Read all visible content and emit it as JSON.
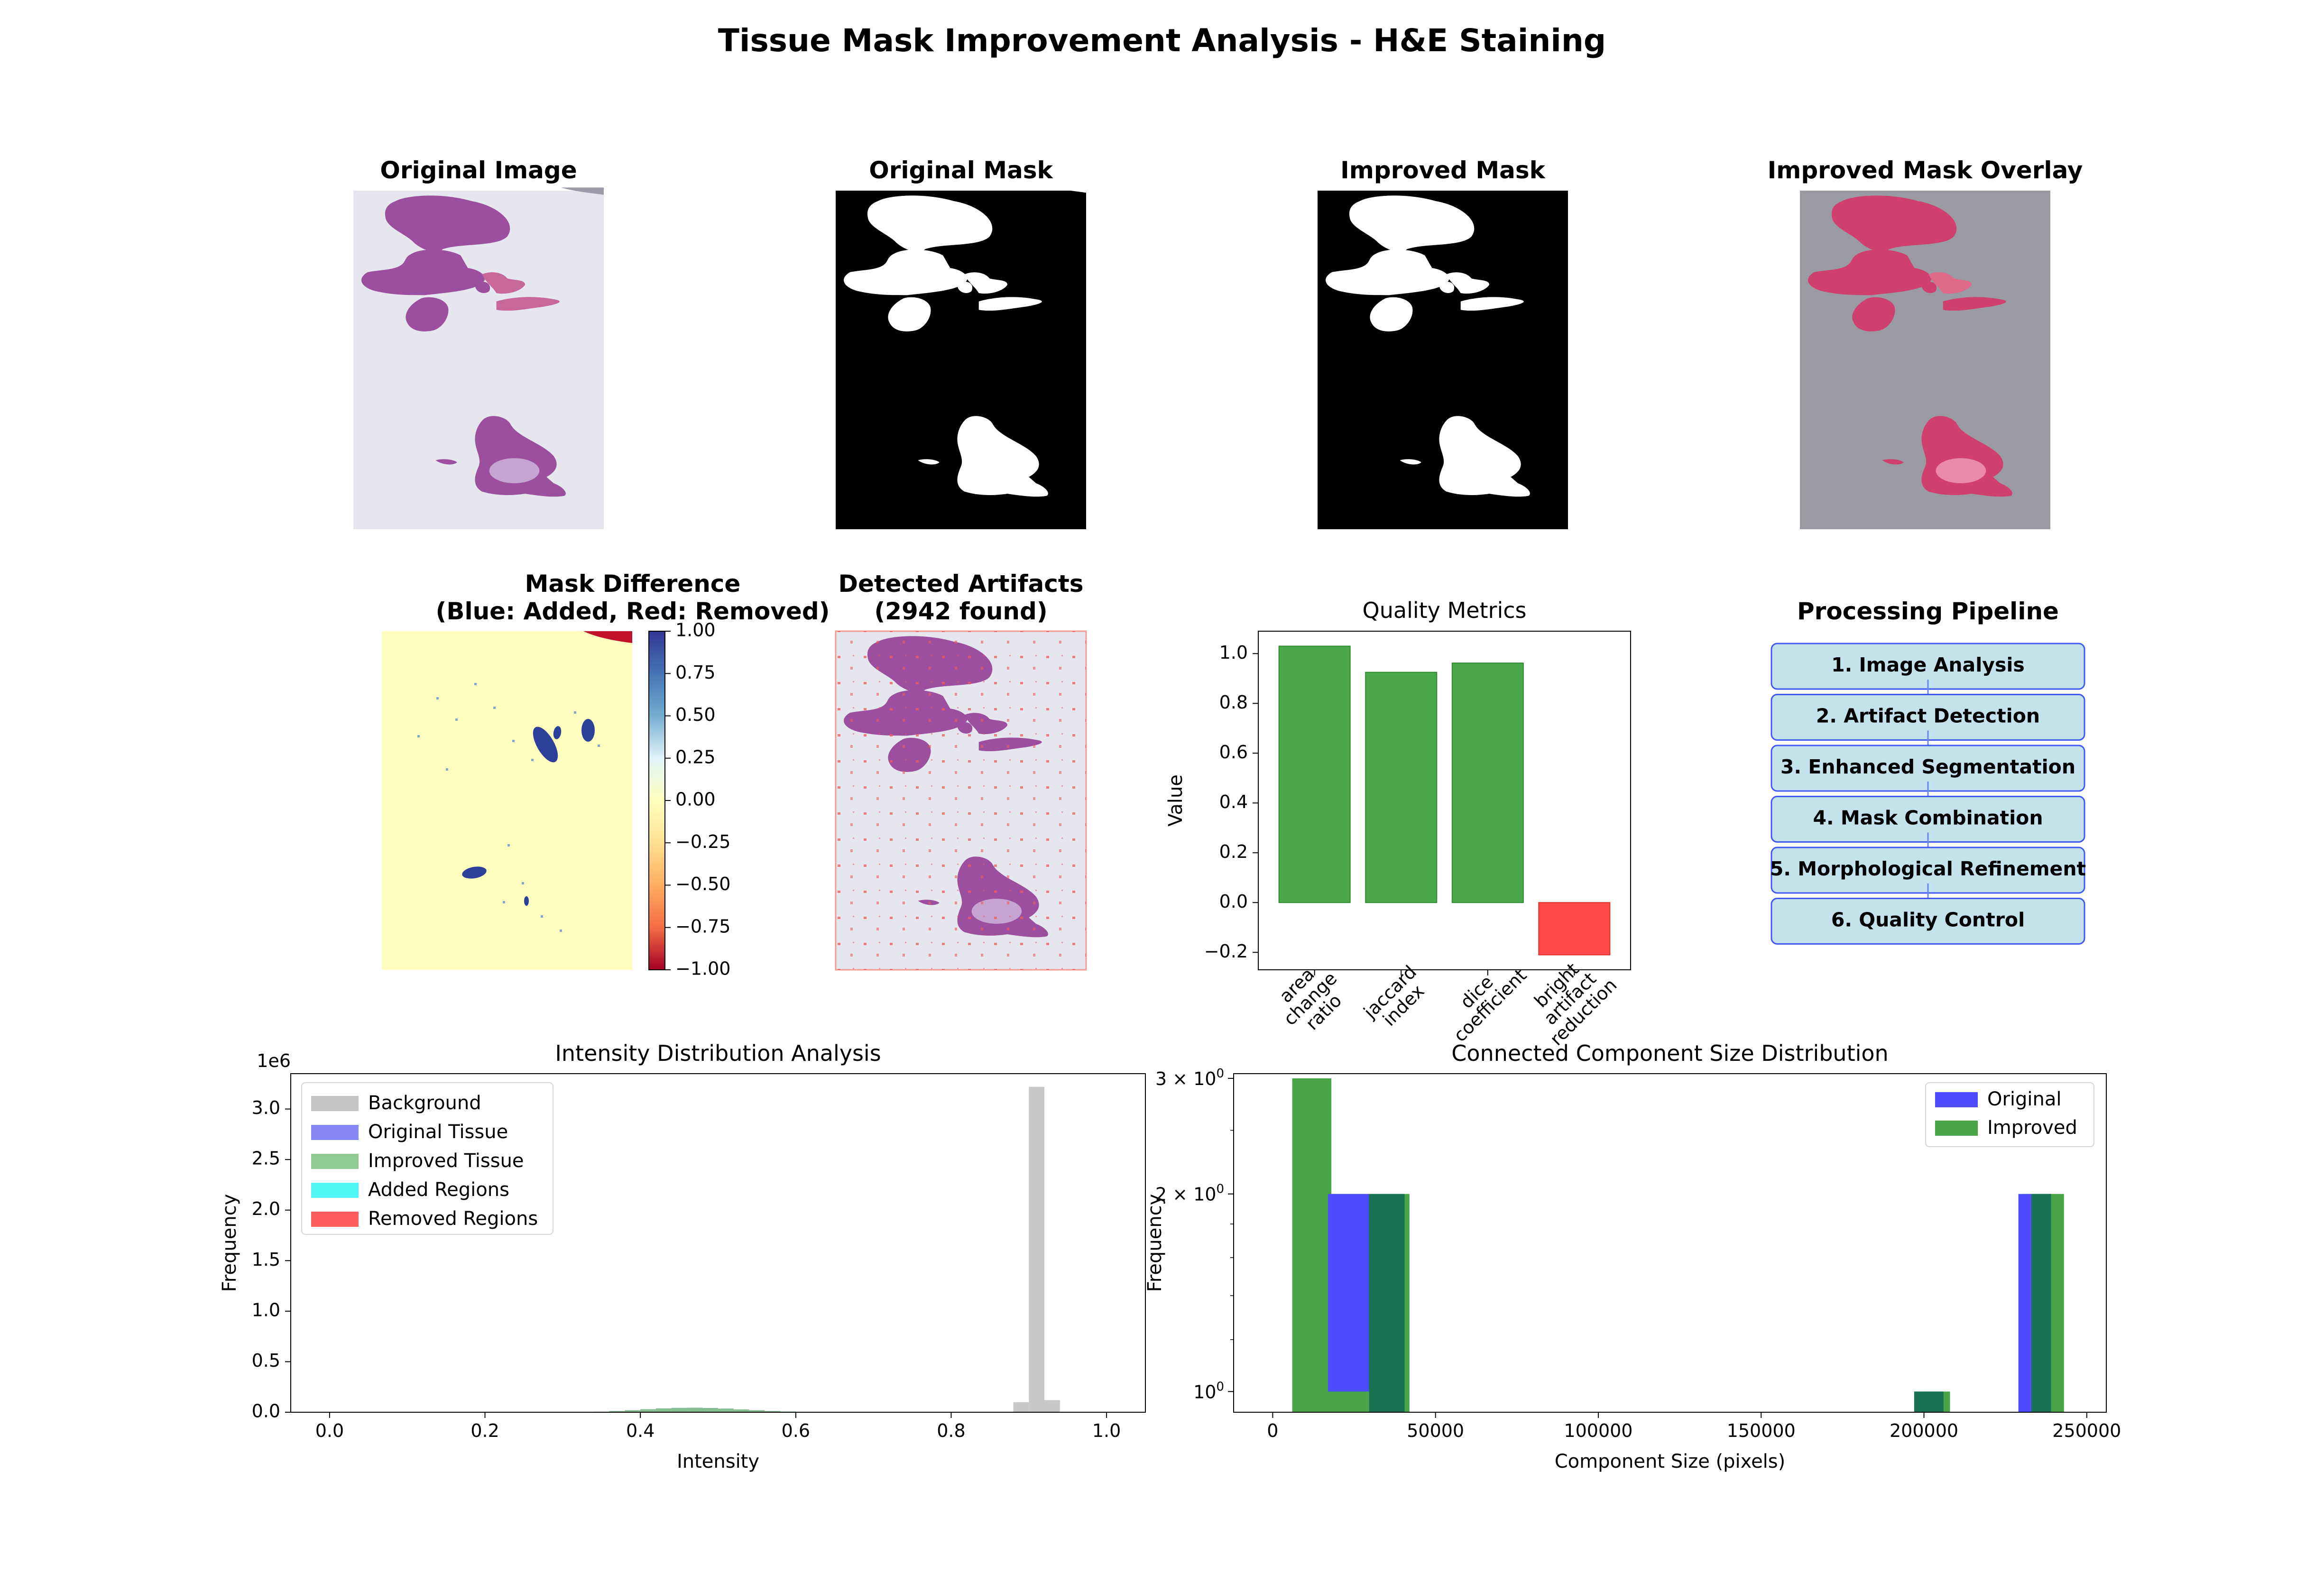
{
  "suptitle": "Tissue Mask Improvement Analysis - H&E Staining",
  "panels": {
    "original_image": {
      "title": "Original Image"
    },
    "original_mask": {
      "title": "Original Mask"
    },
    "improved_mask": {
      "title": "Improved Mask"
    },
    "overlay": {
      "title": "Improved Mask Overlay"
    },
    "difference": {
      "title_line1": "Mask Difference",
      "title_line2": "(Blue: Added, Red: Removed)",
      "colorbar_ticks": [
        "1.00",
        "0.75",
        "0.50",
        "0.25",
        "0.00",
        "−0.25",
        "−0.50",
        "−0.75",
        "−1.00"
      ],
      "colorbar_values": [
        1.0,
        0.75,
        0.5,
        0.25,
        0.0,
        -0.25,
        -0.5,
        -0.75,
        -1.0
      ]
    },
    "artifacts": {
      "title_line1": "Detected Artifacts",
      "title_line2": "(2942 found)"
    },
    "pipeline": {
      "title": "Processing Pipeline",
      "steps": [
        "1. Image Analysis",
        "2. Artifact Detection",
        "3. Enhanced Segmentation",
        "4. Mask Combination",
        "5. Morphological Refinement",
        "6. Quality Control"
      ]
    }
  },
  "colors": {
    "tissue_purple": "#9b4f9e",
    "tissue_pink": "#c8689a",
    "slide_bg": "#e6e6ee",
    "mask_black": "#000000",
    "mask_white": "#ffffff",
    "overlay_gray": "#9a9aa2",
    "overlay_tissue": "#d0406e",
    "diff_bg": "#fffebf",
    "diff_blue": "#2c3f99",
    "diff_red": "#c0102a",
    "bar_green": "#4aa84a",
    "bar_red": "#ff4848",
    "hist_gray": "#bfbfbf",
    "hist_blue": "#7a7af5",
    "hist_green": "#84c484",
    "hist_cyan": "#3ff5f5",
    "hist_red": "#ff4a4a",
    "cc_blue": "#4d4dff",
    "cc_green": "#47a447",
    "cc_overlap": "#177352",
    "pipeline_fill": "#c4e2ec",
    "pipeline_edge": "#4058f0"
  },
  "chart_data": [
    {
      "type": "bar",
      "title": "Quality Metrics",
      "xlabel": "",
      "ylabel": "Value",
      "categories": [
        "area\nchange\nratio",
        "jaccard\nindex",
        "dice\ncoefficient",
        "bright\nartifact\nreduction"
      ],
      "values": [
        1.03,
        0.925,
        0.962,
        -0.21
      ],
      "ylim": [
        -0.27,
        1.09
      ],
      "yticks": [
        -0.2,
        0.0,
        0.2,
        0.4,
        0.6,
        0.8,
        1.0
      ],
      "ytick_labels": [
        "−0.2",
        "0.0",
        "0.2",
        "0.4",
        "0.6",
        "0.8",
        "1.0"
      ],
      "grid": false
    },
    {
      "type": "bar",
      "title": "Intensity Distribution Analysis",
      "xlabel": "Intensity",
      "ylabel": "Frequency",
      "offset_label": "1e6",
      "xlim": [
        -0.05,
        1.05
      ],
      "ylim": [
        0,
        3.35
      ],
      "xticks": [
        0.0,
        0.2,
        0.4,
        0.6,
        0.8,
        1.0
      ],
      "xtick_labels": [
        "0.0",
        "0.2",
        "0.4",
        "0.6",
        "0.8",
        "1.0"
      ],
      "yticks": [
        0.0,
        0.5,
        1.0,
        1.5,
        2.0,
        2.5,
        3.0
      ],
      "ytick_labels": [
        "0.0",
        "0.5",
        "1.0",
        "1.5",
        "2.0",
        "2.5",
        "3.0"
      ],
      "legend_position": "upper-left",
      "series": [
        {
          "name": "Background",
          "color": "#bfbfbf",
          "bin_width": 0.02,
          "x": [
            0.88,
            0.9,
            0.92
          ],
          "values": [
            0.1,
            3.22,
            0.12
          ]
        },
        {
          "name": "Original Tissue",
          "color": "#7a7af5",
          "bin_width": 0.02,
          "x": [
            0.34,
            0.36,
            0.38,
            0.4,
            0.42,
            0.44,
            0.46,
            0.48,
            0.5,
            0.52,
            0.54,
            0.56,
            0.58,
            0.6
          ],
          "values": [
            0.005,
            0.012,
            0.02,
            0.03,
            0.038,
            0.043,
            0.045,
            0.042,
            0.036,
            0.028,
            0.02,
            0.012,
            0.007,
            0.003
          ]
        },
        {
          "name": "Improved Tissue",
          "color": "#84c484",
          "bin_width": 0.02,
          "x": [
            0.34,
            0.36,
            0.38,
            0.4,
            0.42,
            0.44,
            0.46,
            0.48,
            0.5,
            0.52,
            0.54,
            0.56,
            0.58,
            0.6
          ],
          "values": [
            0.005,
            0.012,
            0.02,
            0.03,
            0.038,
            0.043,
            0.045,
            0.042,
            0.036,
            0.028,
            0.02,
            0.012,
            0.007,
            0.003
          ]
        },
        {
          "name": "Added Regions",
          "color": "#3ff5f5",
          "bin_width": 0.02,
          "x": [
            0.88,
            0.9
          ],
          "values": [
            0.002,
            0.004
          ]
        },
        {
          "name": "Removed Regions",
          "color": "#ff4a4a",
          "bin_width": 0.02,
          "x": [
            0.9
          ],
          "values": [
            0.001
          ]
        }
      ]
    },
    {
      "type": "bar",
      "title": "Connected Component Size Distribution",
      "xlabel": "Component Size (pixels)",
      "ylabel": "Frequency",
      "yscale": "log",
      "xlim": [
        -12000,
        256000
      ],
      "ylim": [
        0.93,
        3.05
      ],
      "xticks": [
        0,
        50000,
        100000,
        150000,
        200000,
        250000
      ],
      "xtick_labels": [
        "0",
        "50000",
        "100000",
        "150000",
        "200000",
        "250000"
      ],
      "yticks": [
        1,
        2,
        3
      ],
      "ytick_bases": [
        "10",
        "2 × 10",
        "3 × 10"
      ],
      "ytick_exponent": "0",
      "legend_position": "upper-right",
      "series": [
        {
          "name": "Original",
          "color": "#4d4dff",
          "bins": [
            [
              17000,
              29600,
              2
            ],
            [
              29600,
              42200,
              2
            ],
            [
              197000,
              206500,
              1
            ],
            [
              229000,
              239000,
              2
            ]
          ]
        },
        {
          "name": "Improved",
          "color": "#47a447",
          "bins": [
            [
              6000,
              18000,
              3
            ],
            [
              18000,
              30000,
              2
            ],
            [
              30000,
              42000,
              2
            ],
            [
              197000,
              208000,
              1
            ],
            [
              231000,
              243000,
              2
            ]
          ]
        }
      ]
    }
  ]
}
